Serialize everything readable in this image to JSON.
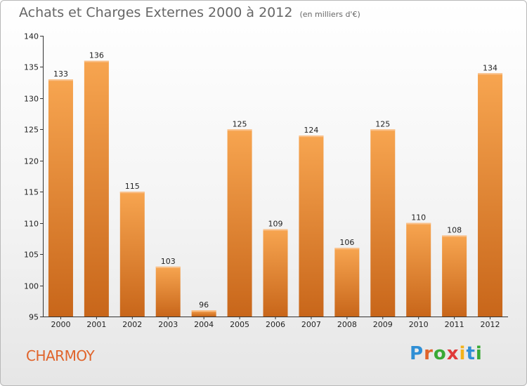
{
  "title": "Achats et Charges Externes 2000 à 2012",
  "unit_note": "(en milliers d'€)",
  "town": "CHARMOY",
  "logo": {
    "text": "Proxiti",
    "letter_colors": [
      "#2f8fd5",
      "#e0632a",
      "#39a935",
      "#e03a3a",
      "#f2b21b",
      "#2f8fd5",
      "#39a935"
    ]
  },
  "colors": {
    "bar_top": "#f7a550",
    "bar_bottom": "#c8661a",
    "axis": "#333333"
  },
  "chart_data": {
    "type": "bar",
    "title": "Achats et Charges Externes 2000 à 2012",
    "subtitle": "(en milliers d'€)",
    "categories": [
      "2000",
      "2001",
      "2002",
      "2003",
      "2004",
      "2005",
      "2006",
      "2007",
      "2008",
      "2009",
      "2010",
      "2011",
      "2012"
    ],
    "values": [
      133,
      136,
      115,
      103,
      96,
      125,
      109,
      124,
      106,
      125,
      110,
      108,
      134
    ],
    "ylim": [
      95,
      140
    ],
    "yticks": [
      95,
      100,
      105,
      110,
      115,
      120,
      125,
      130,
      135,
      140
    ],
    "grid": false,
    "data_labels": true
  }
}
